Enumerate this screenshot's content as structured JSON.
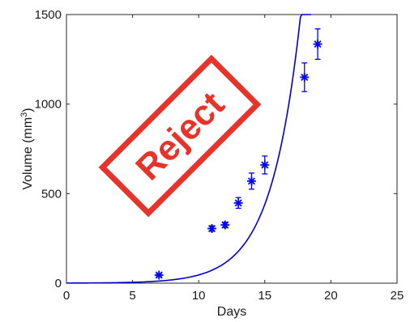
{
  "chart_data": {
    "type": "scatter",
    "title": "",
    "xlabel": "Days",
    "ylabel": "Volume (mm",
    "ylabel_superscript": "3",
    "ylabel_suffix": ")",
    "xlim": [
      0,
      25
    ],
    "ylim": [
      0,
      1500
    ],
    "x_ticks": [
      0,
      5,
      10,
      15,
      20,
      25
    ],
    "y_ticks": [
      0,
      500,
      1000,
      1500
    ],
    "grid": false,
    "marker": "asterisk",
    "marker_color": "#0000ff",
    "line_color": "#0000cc",
    "series": [
      {
        "kind": "points-with-error",
        "x": [
          7,
          11,
          12,
          13,
          14,
          15,
          18,
          19
        ],
        "y": [
          45,
          305,
          325,
          448,
          570,
          660,
          1150,
          1335
        ],
        "err": [
          8,
          15,
          15,
          30,
          45,
          50,
          80,
          85
        ]
      },
      {
        "kind": "fit-curve",
        "model": "exponential",
        "a": 0.5,
        "b": 0.452,
        "x_range": [
          0,
          18.5
        ]
      }
    ]
  },
  "stamp": {
    "text": "Reject",
    "color": "#e8332a"
  }
}
